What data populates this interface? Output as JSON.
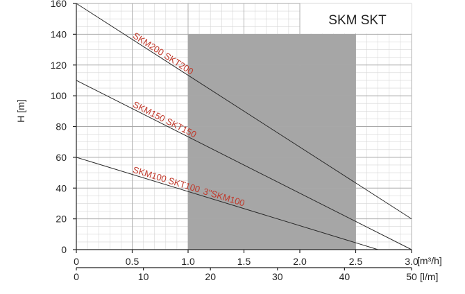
{
  "chart_data": {
    "type": "line",
    "title": "SKM SKT",
    "ylabel": "H [m]",
    "xlabel": "[m³/h]",
    "x2label": "[l/m]",
    "ylim": [
      0,
      160
    ],
    "yticks": [
      0,
      20,
      40,
      60,
      80,
      100,
      120,
      140,
      160
    ],
    "xlim": [
      0,
      3.0
    ],
    "xticks": [
      0,
      0.5,
      {
        "value": 1.0,
        "label": "1.0"
      },
      1.5,
      {
        "value": 2.0,
        "label": "2.0"
      },
      2.5,
      {
        "value": 3.0,
        "label": "3.0"
      }
    ],
    "x2lim": [
      0,
      50
    ],
    "x2ticks": [
      0,
      10,
      20,
      30,
      40,
      50
    ],
    "grid": true,
    "minor_grid": true,
    "shaded_region": {
      "x": [
        1.0,
        2.5
      ],
      "y": [
        0,
        140
      ],
      "color": "#a6a6a6"
    },
    "series": [
      {
        "name": "SKM200 SKT200",
        "color": "#2a2a2a",
        "x": [
          0,
          3.0
        ],
        "values": [
          160,
          20
        ]
      },
      {
        "name": "SKM150 SKT150",
        "color": "#2a2a2a",
        "x": [
          0,
          3.0
        ],
        "values": [
          110,
          0
        ]
      },
      {
        "name": "SKM100 SKT100",
        "color": "#2a2a2a",
        "x": [
          0,
          2.7
        ],
        "values": [
          60,
          0
        ]
      }
    ],
    "annotations": [
      "3\"SKM100"
    ]
  }
}
